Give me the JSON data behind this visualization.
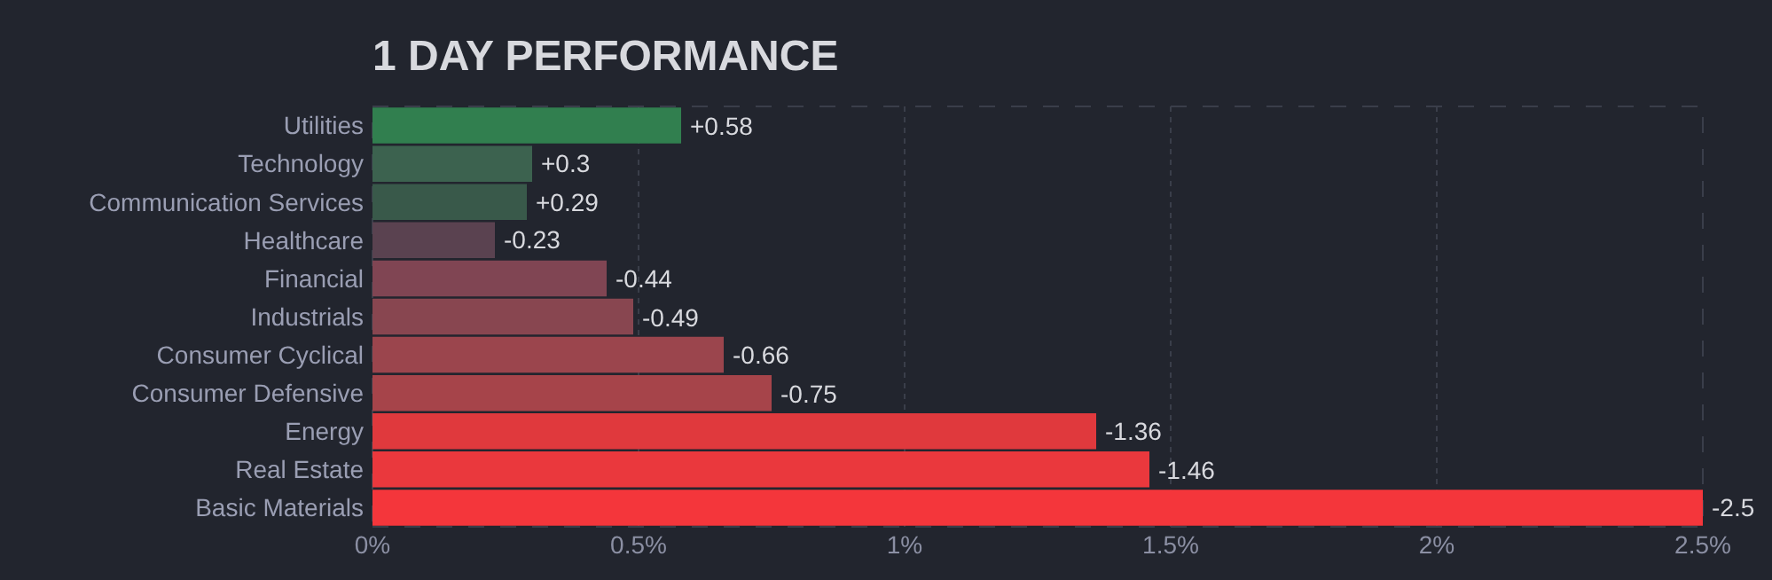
{
  "chart_data": {
    "type": "bar",
    "orientation": "horizontal",
    "title": "1 DAY PERFORMANCE",
    "categories": [
      "Utilities",
      "Technology",
      "Communication Services",
      "Healthcare",
      "Financial",
      "Industrials",
      "Consumer Cyclical",
      "Consumer Defensive",
      "Energy",
      "Real Estate",
      "Basic Materials"
    ],
    "values": [
      0.58,
      0.3,
      0.29,
      -0.23,
      -0.44,
      -0.49,
      -0.66,
      -0.75,
      -1.36,
      -1.46,
      -2.5
    ],
    "base": [
      0,
      0,
      0,
      0.23,
      0.44,
      0.49,
      0.66,
      0.75,
      1.36,
      1.46,
      2.5
    ],
    "value_labels": [
      "+0.58",
      "+0.3",
      "+0.29",
      "-0.23",
      "-0.44",
      "-0.49",
      "-0.66",
      "-0.75",
      "-1.36",
      "-1.46",
      "-2.5"
    ],
    "colors": [
      "#317f4f",
      "#3c624f",
      "#39594a",
      "#5a4250",
      "#804553",
      "#884650",
      "#9b454d",
      "#a6444a",
      "#e0393d",
      "#ea383d",
      "#f4363b"
    ],
    "xlim": [
      0,
      2.5
    ],
    "xticks": [
      {
        "value": 0,
        "label": "0%"
      },
      {
        "value": 0.5,
        "label": "0.5%"
      },
      {
        "value": 1,
        "label": "1%"
      },
      {
        "value": 1.5,
        "label": "1.5%"
      },
      {
        "value": 2,
        "label": "2%"
      },
      {
        "value": 2.5,
        "label": "2.5%"
      }
    ],
    "grid": "x"
  }
}
